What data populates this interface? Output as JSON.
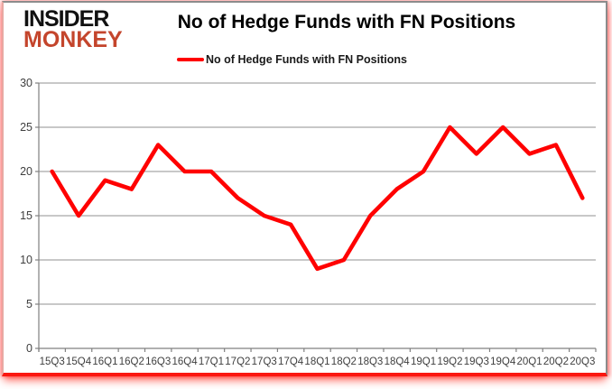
{
  "logo": {
    "line1": "INSIDER",
    "line2": "MONKEY",
    "line2_color": "#c4452c"
  },
  "header": {
    "title": "No of Hedge Funds with FN Positions"
  },
  "legend": {
    "label": "No of Hedge Funds with FN Positions",
    "swatch_color": "#ff0000"
  },
  "chart_data": {
    "type": "line",
    "title": "No of Hedge Funds with FN Positions",
    "categories": [
      "15Q3",
      "15Q4",
      "16Q1",
      "16Q2",
      "16Q3",
      "16Q4",
      "17Q1",
      "17Q2",
      "17Q3",
      "17Q4",
      "18Q1",
      "18Q2",
      "18Q3",
      "18Q4",
      "19Q1",
      "19Q2",
      "19Q3",
      "19Q4",
      "20Q1",
      "20Q2",
      "20Q3"
    ],
    "series": [
      {
        "name": "No of Hedge Funds with FN Positions",
        "color": "#ff0000",
        "values": [
          20,
          15,
          19,
          18,
          23,
          20,
          20,
          17,
          15,
          14,
          9,
          10,
          15,
          18,
          20,
          25,
          22,
          25,
          22,
          23,
          17
        ]
      }
    ],
    "xlabel": "",
    "ylabel": "",
    "ylim": [
      0,
      30
    ],
    "yticks": [
      0,
      5,
      10,
      15,
      20,
      25,
      30
    ],
    "grid": "horizontal",
    "legend_position": "top-center",
    "colors": {
      "grid": "#a6a6a6",
      "axis": "#808080",
      "tick_label": "#3f3f3f",
      "background": "#ffffff"
    }
  }
}
